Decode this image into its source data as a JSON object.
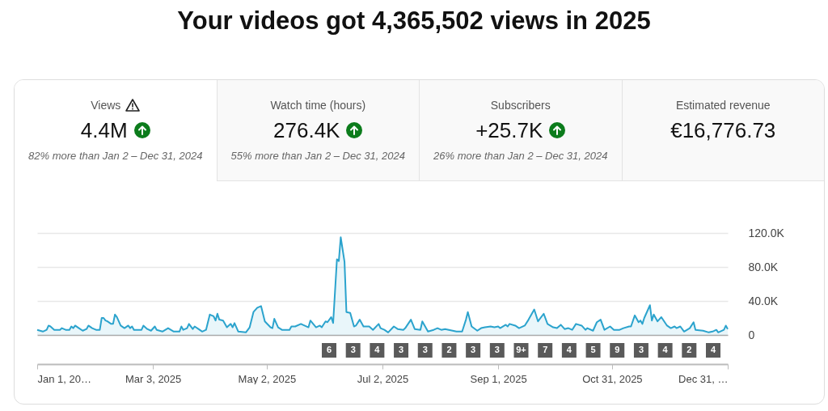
{
  "chart_data": [
    {
      "type": "other",
      "title": "Views",
      "subtitle": "4.4M",
      "annotations": [
        "82% more than Jan 2 – Dec 31, 2024"
      ]
    },
    {
      "type": "other",
      "title": "Watch time (hours)",
      "subtitle": "276.4K",
      "annotations": [
        "55% more than Jan 2 – Dec 31, 2024"
      ]
    },
    {
      "type": "other",
      "title": "Subscribers",
      "subtitle": "+25.7K",
      "annotations": [
        "26% more than Jan 2 – Dec 31, 2024"
      ]
    },
    {
      "type": "other",
      "title": "Estimated revenue",
      "subtitle": "€16,776.73"
    },
    {
      "type": "area",
      "title": "Your videos got 4,365,502 views in 2025",
      "x": [
        "2025-01-01",
        "2025-01-04",
        "2025-01-06",
        "2025-01-07",
        "2025-01-08",
        "2025-01-10",
        "2025-01-13",
        "2025-01-14",
        "2025-01-16",
        "2025-01-18",
        "2025-01-19",
        "2025-01-20",
        "2025-01-21",
        "2025-01-23",
        "2025-01-25",
        "2025-01-27",
        "2025-01-28",
        "2025-01-30",
        "2025-02-01",
        "2025-02-03",
        "2025-02-04",
        "2025-02-05",
        "2025-02-06",
        "2025-02-07",
        "2025-02-09",
        "2025-02-10",
        "2025-02-11",
        "2025-02-12",
        "2025-02-14",
        "2025-02-16",
        "2025-02-18",
        "2025-02-19",
        "2025-02-20",
        "2025-02-21",
        "2025-02-25",
        "2025-02-26",
        "2025-02-28",
        "2025-03-02",
        "2025-03-04",
        "2025-03-05",
        "2025-03-08",
        "2025-03-11",
        "2025-03-14",
        "2025-03-17",
        "2025-03-18",
        "2025-03-19",
        "2025-03-21",
        "2025-03-22",
        "2025-03-24",
        "2025-03-25",
        "2025-03-27",
        "2025-03-29",
        "2025-03-31",
        "2025-04-02",
        "2025-04-04",
        "2025-04-05",
        "2025-04-06",
        "2025-04-07",
        "2025-04-09",
        "2025-04-11",
        "2025-04-13",
        "2025-04-14",
        "2025-04-15",
        "2025-04-17",
        "2025-04-21",
        "2025-04-23",
        "2025-04-25",
        "2025-04-27",
        "2025-04-29",
        "2025-05-01",
        "2025-05-04",
        "2025-05-05",
        "2025-05-06",
        "2025-05-08",
        "2025-05-10",
        "2025-05-14",
        "2025-05-15",
        "2025-05-17",
        "2025-05-20",
        "2025-05-24",
        "2025-05-25",
        "2025-05-28",
        "2025-05-30",
        "2025-05-31",
        "2025-06-02",
        "2025-06-03",
        "2025-06-05",
        "2025-06-06",
        "2025-06-08",
        "2025-06-09",
        "2025-06-10",
        "2025-06-12",
        "2025-06-13",
        "2025-06-15",
        "2025-06-17",
        "2025-06-18",
        "2025-06-20",
        "2025-06-22",
        "2025-06-25",
        "2025-06-27",
        "2025-06-30",
        "2025-07-01",
        "2025-07-03",
        "2025-07-05",
        "2025-07-08",
        "2025-07-10",
        "2025-07-13",
        "2025-07-14",
        "2025-07-17",
        "2025-07-19",
        "2025-07-22",
        "2025-07-23",
        "2025-07-26",
        "2025-07-29",
        "2025-07-31",
        "2025-08-02",
        "2025-08-04",
        "2025-08-08",
        "2025-08-10",
        "2025-08-13",
        "2025-08-15",
        "2025-08-16",
        "2025-08-18",
        "2025-08-21",
        "2025-08-23",
        "2025-08-25",
        "2025-08-28",
        "2025-08-30",
        "2025-09-01",
        "2025-09-02",
        "2025-09-05",
        "2025-09-06",
        "2025-09-07",
        "2025-09-10",
        "2025-09-12",
        "2025-09-15",
        "2025-09-17",
        "2025-09-20",
        "2025-09-22",
        "2025-09-25",
        "2025-09-27",
        "2025-09-30",
        "2025-10-02",
        "2025-10-04",
        "2025-10-06",
        "2025-10-08",
        "2025-10-10",
        "2025-10-12",
        "2025-10-15",
        "2025-10-17",
        "2025-10-18",
        "2025-10-21",
        "2025-10-23",
        "2025-10-25",
        "2025-10-27",
        "2025-10-30",
        "2025-11-01",
        "2025-11-04",
        "2025-11-06",
        "2025-11-09",
        "2025-11-10",
        "2025-11-12",
        "2025-11-14",
        "2025-11-15",
        "2025-11-16",
        "2025-11-17",
        "2025-11-20",
        "2025-11-21",
        "2025-11-22",
        "2025-11-24",
        "2025-11-26",
        "2025-11-29",
        "2025-12-01",
        "2025-12-03",
        "2025-12-04",
        "2025-12-06",
        "2025-12-08",
        "2025-12-11",
        "2025-12-13",
        "2025-12-14",
        "2025-12-18",
        "2025-12-21",
        "2025-12-23",
        "2025-12-25",
        "2025-12-26",
        "2025-12-29",
        "2025-12-30",
        "2025-12-31"
      ],
      "series": [
        {
          "color": "#2ba3cd",
          "values": [
            6000,
            4000,
            6000,
            11000,
            10000,
            6000,
            6000,
            8000,
            6000,
            6000,
            10000,
            8000,
            11000,
            8000,
            5000,
            7000,
            11000,
            8000,
            6000,
            6000,
            20000,
            20000,
            17000,
            16000,
            13000,
            13000,
            24000,
            21000,
            11000,
            8000,
            11000,
            8000,
            10000,
            6000,
            6000,
            11000,
            7000,
            5000,
            10000,
            6000,
            4000,
            8000,
            4000,
            4000,
            10000,
            6000,
            8000,
            13000,
            7000,
            10000,
            7000,
            4000,
            6000,
            24000,
            22000,
            17000,
            25000,
            18000,
            17000,
            9000,
            13000,
            9000,
            14000,
            4000,
            3000,
            9000,
            27000,
            32000,
            34000,
            16000,
            9000,
            8000,
            19000,
            9000,
            6000,
            6000,
            10000,
            10000,
            13000,
            9000,
            17000,
            9000,
            11000,
            9000,
            16000,
            15000,
            21000,
            14000,
            89000,
            87000,
            115000,
            86000,
            27000,
            26000,
            10000,
            11000,
            18000,
            10000,
            10000,
            6000,
            13000,
            8000,
            6000,
            3000,
            10000,
            7000,
            6000,
            8000,
            18000,
            7000,
            6000,
            16000,
            4000,
            6000,
            8000,
            6000,
            7000,
            5000,
            4000,
            4000,
            18000,
            27000,
            10000,
            5000,
            8000,
            9000,
            10000,
            9000,
            10000,
            8000,
            12000,
            10000,
            13000,
            11000,
            8000,
            11000,
            18000,
            30000,
            16000,
            25000,
            13000,
            9000,
            8000,
            12000,
            7000,
            8000,
            6000,
            13000,
            11000,
            6000,
            8000,
            5000,
            15000,
            18000,
            6000,
            10000,
            6000,
            6000,
            8000,
            10000,
            10000,
            23000,
            15000,
            17000,
            13000,
            20000,
            35000,
            17000,
            24000,
            16000,
            21000,
            11000,
            8000,
            10000,
            8000,
            10000,
            4000,
            8000,
            15000,
            6000,
            5000,
            3000,
            4000,
            6000,
            3000,
            6000,
            11000,
            7000
          ]
        }
      ],
      "xlim": [
        "2025-01-01",
        "2025-12-31"
      ],
      "xticks": [
        {
          "value": "2025-01-01",
          "label": "Jan 1, 20…"
        },
        {
          "value": "2025-03-03",
          "label": "Mar 3, 2025"
        },
        {
          "value": "2025-05-02",
          "label": "May 2, 2025"
        },
        {
          "value": "2025-07-02",
          "label": "Jul 2, 2025"
        },
        {
          "value": "2025-09-01",
          "label": "Sep 1, 2025"
        },
        {
          "value": "2025-10-31",
          "label": "Oct 31, 2025"
        },
        {
          "value": "2025-12-31",
          "label": "Dec 31, …"
        }
      ],
      "ylim": [
        0,
        120000
      ],
      "yticks": [
        0,
        {
          "value": 40000,
          "label": "40.0K"
        },
        {
          "value": 80000,
          "label": "80.0K"
        },
        {
          "value": 120000,
          "label": "120.0K"
        }
      ],
      "grid": "y",
      "annotations": [
        "6",
        "3",
        "4",
        "3",
        "3",
        "2",
        "3",
        "3",
        "9+",
        "7",
        "4",
        "5",
        "9",
        "3",
        "4",
        "2",
        "4"
      ]
    }
  ]
}
